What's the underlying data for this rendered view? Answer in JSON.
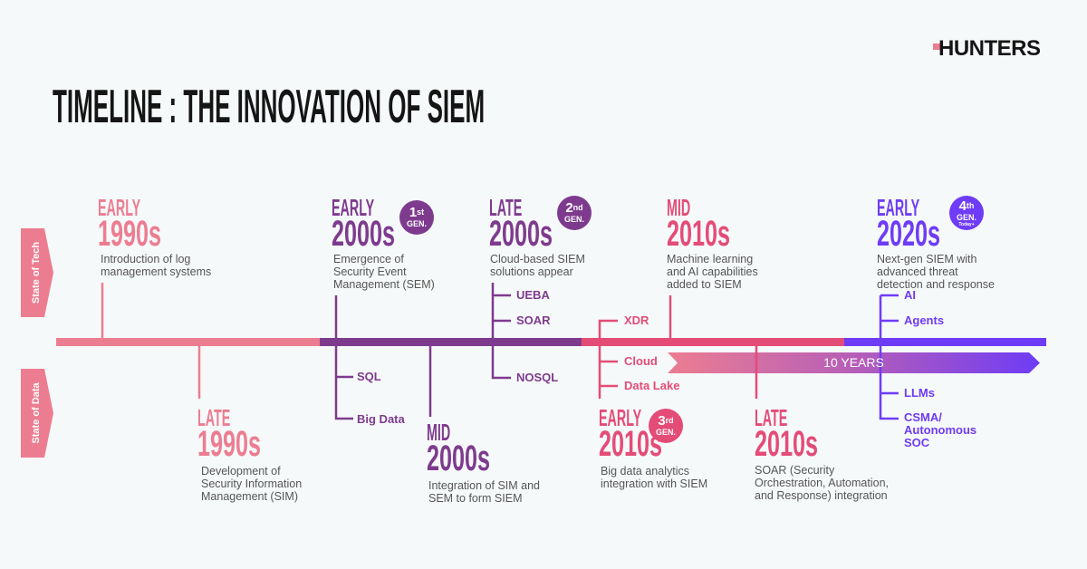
{
  "brand": {
    "logo": "HUNTERS",
    "logo_accent": "#ec7d91"
  },
  "title": "TIMELINE : THE INNOVATION OF SIEM",
  "side_labels": {
    "tech": "State of Tech",
    "data": "State of Data"
  },
  "colors": {
    "pink": "#ec7d91",
    "purple": "#7e3b8e",
    "magenta": "#e44c78",
    "violet": "#6e3cf6",
    "text": "#555555"
  },
  "span_arrow": "10 YEARS",
  "events": {
    "early_1990s": {
      "label": "EARLY",
      "year": "1990s",
      "desc": [
        "Introduction of log",
        "management systems"
      ]
    },
    "late_1990s": {
      "label": "LATE",
      "year": "1990s",
      "desc": [
        "Development of",
        "Security Information",
        "Management (SIM)"
      ]
    },
    "early_2000s": {
      "label": "EARLY",
      "year": "2000s",
      "badge": {
        "num": "1",
        "suffix": "st",
        "gen": "GEN."
      },
      "desc": [
        "Emergence of",
        "Security Event",
        "Management (SEM)"
      ],
      "items": [
        "SQL",
        "Big Data"
      ]
    },
    "mid_2000s": {
      "label": "MID",
      "year": "2000s",
      "desc": [
        "Integration of SIM and",
        "SEM to form SIEM"
      ]
    },
    "late_2000s": {
      "label": "LATE",
      "year": "2000s",
      "badge": {
        "num": "2",
        "suffix": "nd",
        "gen": "GEN."
      },
      "desc": [
        "Cloud-based SIEM",
        "solutions appear"
      ],
      "items": [
        "UEBA",
        "SOAR",
        "NOSQL"
      ]
    },
    "early_2010s": {
      "label": "EARLY",
      "year": "2010s",
      "badge": {
        "num": "3",
        "suffix": "rd",
        "gen": "GEN."
      },
      "desc": [
        "Big data analytics",
        "integration with SIEM"
      ],
      "items": [
        "XDR",
        "Cloud",
        "Data Lake"
      ]
    },
    "mid_2010s": {
      "label": "MID",
      "year": "2010s",
      "desc": [
        "Machine learning",
        "and AI capabilities",
        "added to SIEM"
      ]
    },
    "late_2010s": {
      "label": "LATE",
      "year": "2010s",
      "desc": [
        "SOAR (Security",
        "Orchestration, Automation,",
        "and Response) integration"
      ]
    },
    "early_2020s": {
      "label": "EARLY",
      "year": "2020s",
      "badge": {
        "num": "4",
        "suffix": "th",
        "gen": "GEN.",
        "note": "Today+"
      },
      "desc": [
        "Next-gen SIEM with",
        "advanced threat",
        "detection and response"
      ],
      "items": [
        "AI",
        "Agents",
        "LLMs",
        "CSMA/",
        "Autonomous",
        "SOC"
      ]
    }
  }
}
